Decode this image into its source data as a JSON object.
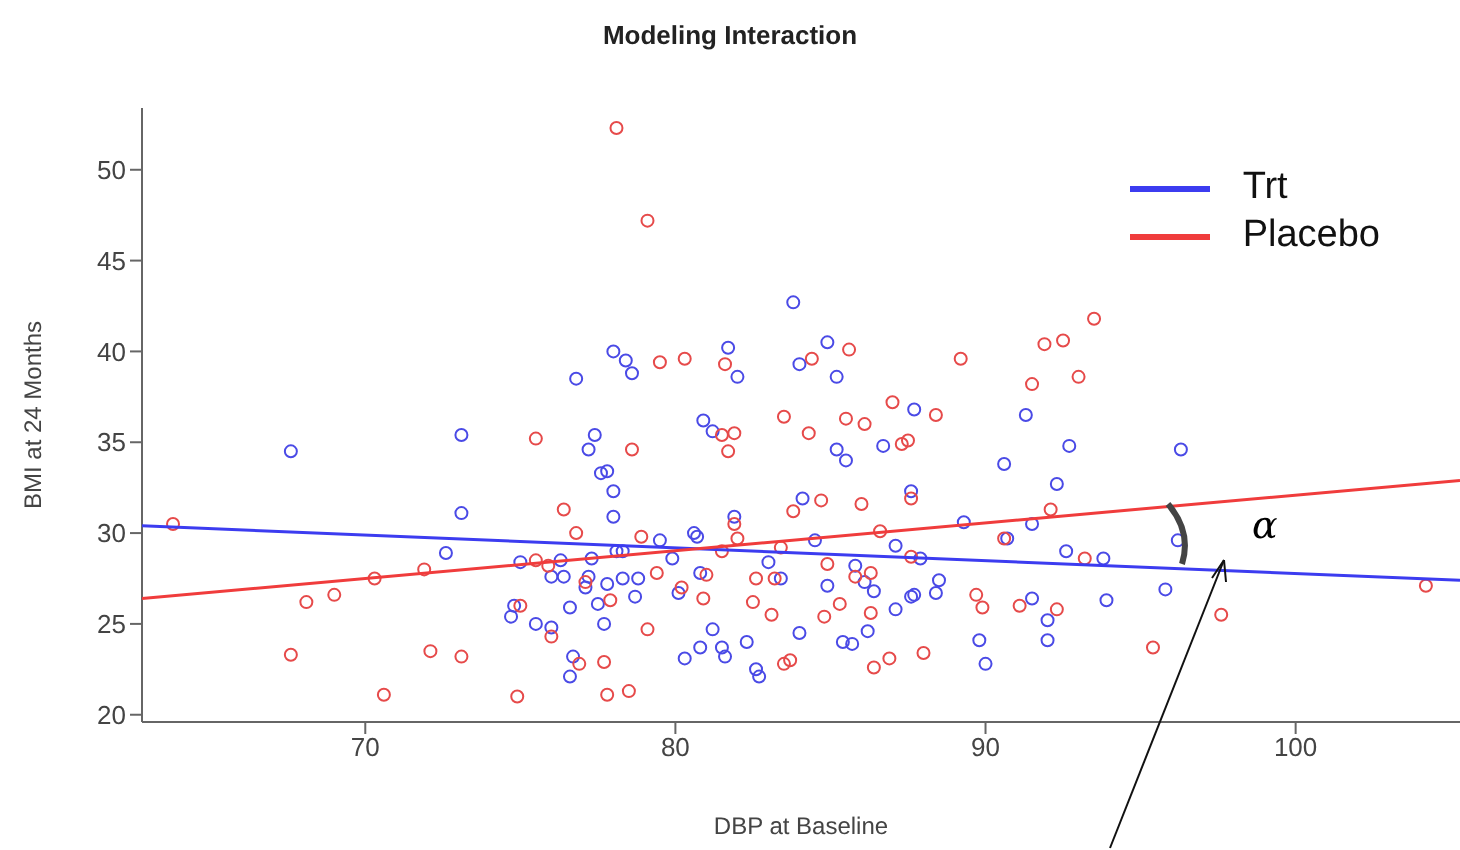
{
  "chart_data": {
    "type": "scatter",
    "title": "Modeling Interaction",
    "xlabel": "DBP at Baseline",
    "ylabel": "BMI at 24 Months",
    "xlim": [
      62.8,
      105.3
    ],
    "ylim": [
      19.6,
      53.4
    ],
    "xticks": [
      70,
      80,
      90,
      100
    ],
    "yticks": [
      20,
      25,
      30,
      35,
      40,
      45,
      50
    ],
    "grid": false,
    "legend": "top right",
    "marker": "circle",
    "annotations": [
      "α"
    ],
    "series": [
      {
        "color": "#4a4ae6",
        "x": [
          67.6,
          73.1,
          72.6,
          73.1,
          75,
          74.7,
          74.8,
          75.5,
          76,
          76,
          76.3,
          76.6,
          76.6,
          76.7,
          76.4,
          76.8,
          77.1,
          77.2,
          77.2,
          77.3,
          77.4,
          77.5,
          77.7,
          77.6,
          77.8,
          77.8,
          78,
          78.1,
          78.3,
          78.3,
          78,
          78,
          78.4,
          78.6,
          78.8,
          78.7,
          79.5,
          79.9,
          80.1,
          80.3,
          80.6,
          80.7,
          80.8,
          80.8,
          81.2,
          81.5,
          81.6,
          81.7,
          81.9,
          82,
          80.9,
          81.2,
          82.3,
          82.6,
          82.7,
          83,
          83.4,
          83.8,
          84,
          84.9,
          85.2,
          84,
          84.5,
          84.1,
          85.2,
          85.5,
          84.9,
          85.8,
          86.1,
          86.2,
          85.4,
          85.7,
          86.4,
          86.7,
          87.1,
          87.1,
          87.6,
          87.7,
          87.6,
          87.7,
          87.9,
          88.4,
          88.5,
          89.3,
          89.8,
          90,
          90.6,
          90.7,
          91.5,
          91.5,
          91.3,
          92,
          92,
          92.3,
          92.6,
          92.7,
          93.8,
          93.9,
          95.8,
          96.2,
          96.3
        ],
        "values": [
          34.5,
          35.4,
          28.9,
          31.1,
          28.4,
          25.4,
          26,
          25,
          27.6,
          24.8,
          28.5,
          25.9,
          22.1,
          23.2,
          27.6,
          38.5,
          27,
          34.6,
          27.6,
          28.6,
          35.4,
          26.1,
          25,
          33.3,
          33.4,
          27.2,
          30.9,
          29,
          29,
          27.5,
          32.3,
          40,
          39.5,
          38.8,
          27.5,
          26.5,
          29.6,
          28.6,
          26.7,
          23.1,
          30,
          29.8,
          27.8,
          23.7,
          24.7,
          23.7,
          23.2,
          40.2,
          30.9,
          38.6,
          36.2,
          35.6,
          24,
          22.5,
          22.1,
          28.4,
          27.5,
          42.7,
          39.3,
          40.5,
          38.6,
          24.5,
          29.6,
          31.9,
          34.6,
          34,
          27.1,
          28.2,
          27.3,
          24.6,
          24,
          23.9,
          26.8,
          34.8,
          25.8,
          29.3,
          26.5,
          26.6,
          32.3,
          36.8,
          28.6,
          26.7,
          27.4,
          30.6,
          24.1,
          22.8,
          33.8,
          29.7,
          26.4,
          30.5,
          36.5,
          25.2,
          24.1,
          32.7,
          29,
          34.8,
          28.6,
          26.3,
          26.9,
          29.6,
          34.6
        ]
      },
      {
        "color": "#e64a4a",
        "x": [
          63.8,
          67.6,
          68.1,
          69,
          70.3,
          70.6,
          71.9,
          72.1,
          73.1,
          74.9,
          75,
          75.5,
          75.5,
          75.9,
          76.4,
          76,
          76.9,
          76.8,
          77.1,
          77.7,
          77.8,
          78.1,
          77.9,
          78.5,
          78.6,
          79.1,
          78.9,
          79.1,
          79.4,
          79.5,
          80.3,
          80.2,
          81,
          81.5,
          81.6,
          81.5,
          81.7,
          81.9,
          81.9,
          82.5,
          82.6,
          83.1,
          83.4,
          83.5,
          84.3,
          84.4,
          83.5,
          83.7,
          83.2,
          83.8,
          84.8,
          84.9,
          85.3,
          85.6,
          85.8,
          86,
          86.3,
          86.1,
          86.3,
          86.6,
          86.4,
          86.9,
          87,
          87.3,
          87.5,
          87.6,
          87.6,
          88,
          88.4,
          89.2,
          89.7,
          89.9,
          90.6,
          91.1,
          91.5,
          91.9,
          92.5,
          93,
          92.1,
          92.3,
          93.5,
          93.2,
          95.4,
          97.6,
          104.2,
          82,
          80.9,
          84.7,
          85.5
        ],
        "values": [
          30.5,
          23.3,
          26.2,
          26.6,
          27.5,
          21.1,
          28,
          23.5,
          23.2,
          21,
          26,
          35.2,
          28.5,
          28.2,
          31.3,
          24.3,
          22.8,
          30,
          27.3,
          22.9,
          21.1,
          52.3,
          26.3,
          21.3,
          34.6,
          47.2,
          29.8,
          24.7,
          27.8,
          39.4,
          39.6,
          27,
          27.7,
          29,
          39.3,
          35.4,
          34.5,
          35.5,
          30.5,
          26.2,
          27.5,
          25.5,
          29.2,
          36.4,
          35.5,
          39.6,
          22.8,
          23,
          27.5,
          31.2,
          25.4,
          28.3,
          26.1,
          40.1,
          27.6,
          31.6,
          27.8,
          36,
          25.6,
          30.1,
          22.6,
          23.1,
          37.2,
          34.9,
          35.1,
          31.9,
          28.7,
          23.4,
          36.5,
          39.6,
          26.6,
          25.9,
          29.7,
          26,
          38.2,
          40.4,
          40.6,
          38.6,
          31.3,
          25.8,
          41.8,
          28.6,
          23.7,
          25.5,
          27.1,
          29.7,
          26.4,
          31.8,
          36.3
        ]
      },
      {
        "type": "line",
        "marker": "none",
        "name": "Trt",
        "color": "#3c3cf0",
        "x": [
          62.8,
          105.3
        ],
        "values": [
          30.4,
          27.4
        ]
      },
      {
        "type": "line",
        "marker": "none",
        "name": "Placebo",
        "color": "#f03c3c",
        "x": [
          62.8,
          105.3
        ],
        "values": [
          26.4,
          32.9
        ]
      }
    ]
  }
}
